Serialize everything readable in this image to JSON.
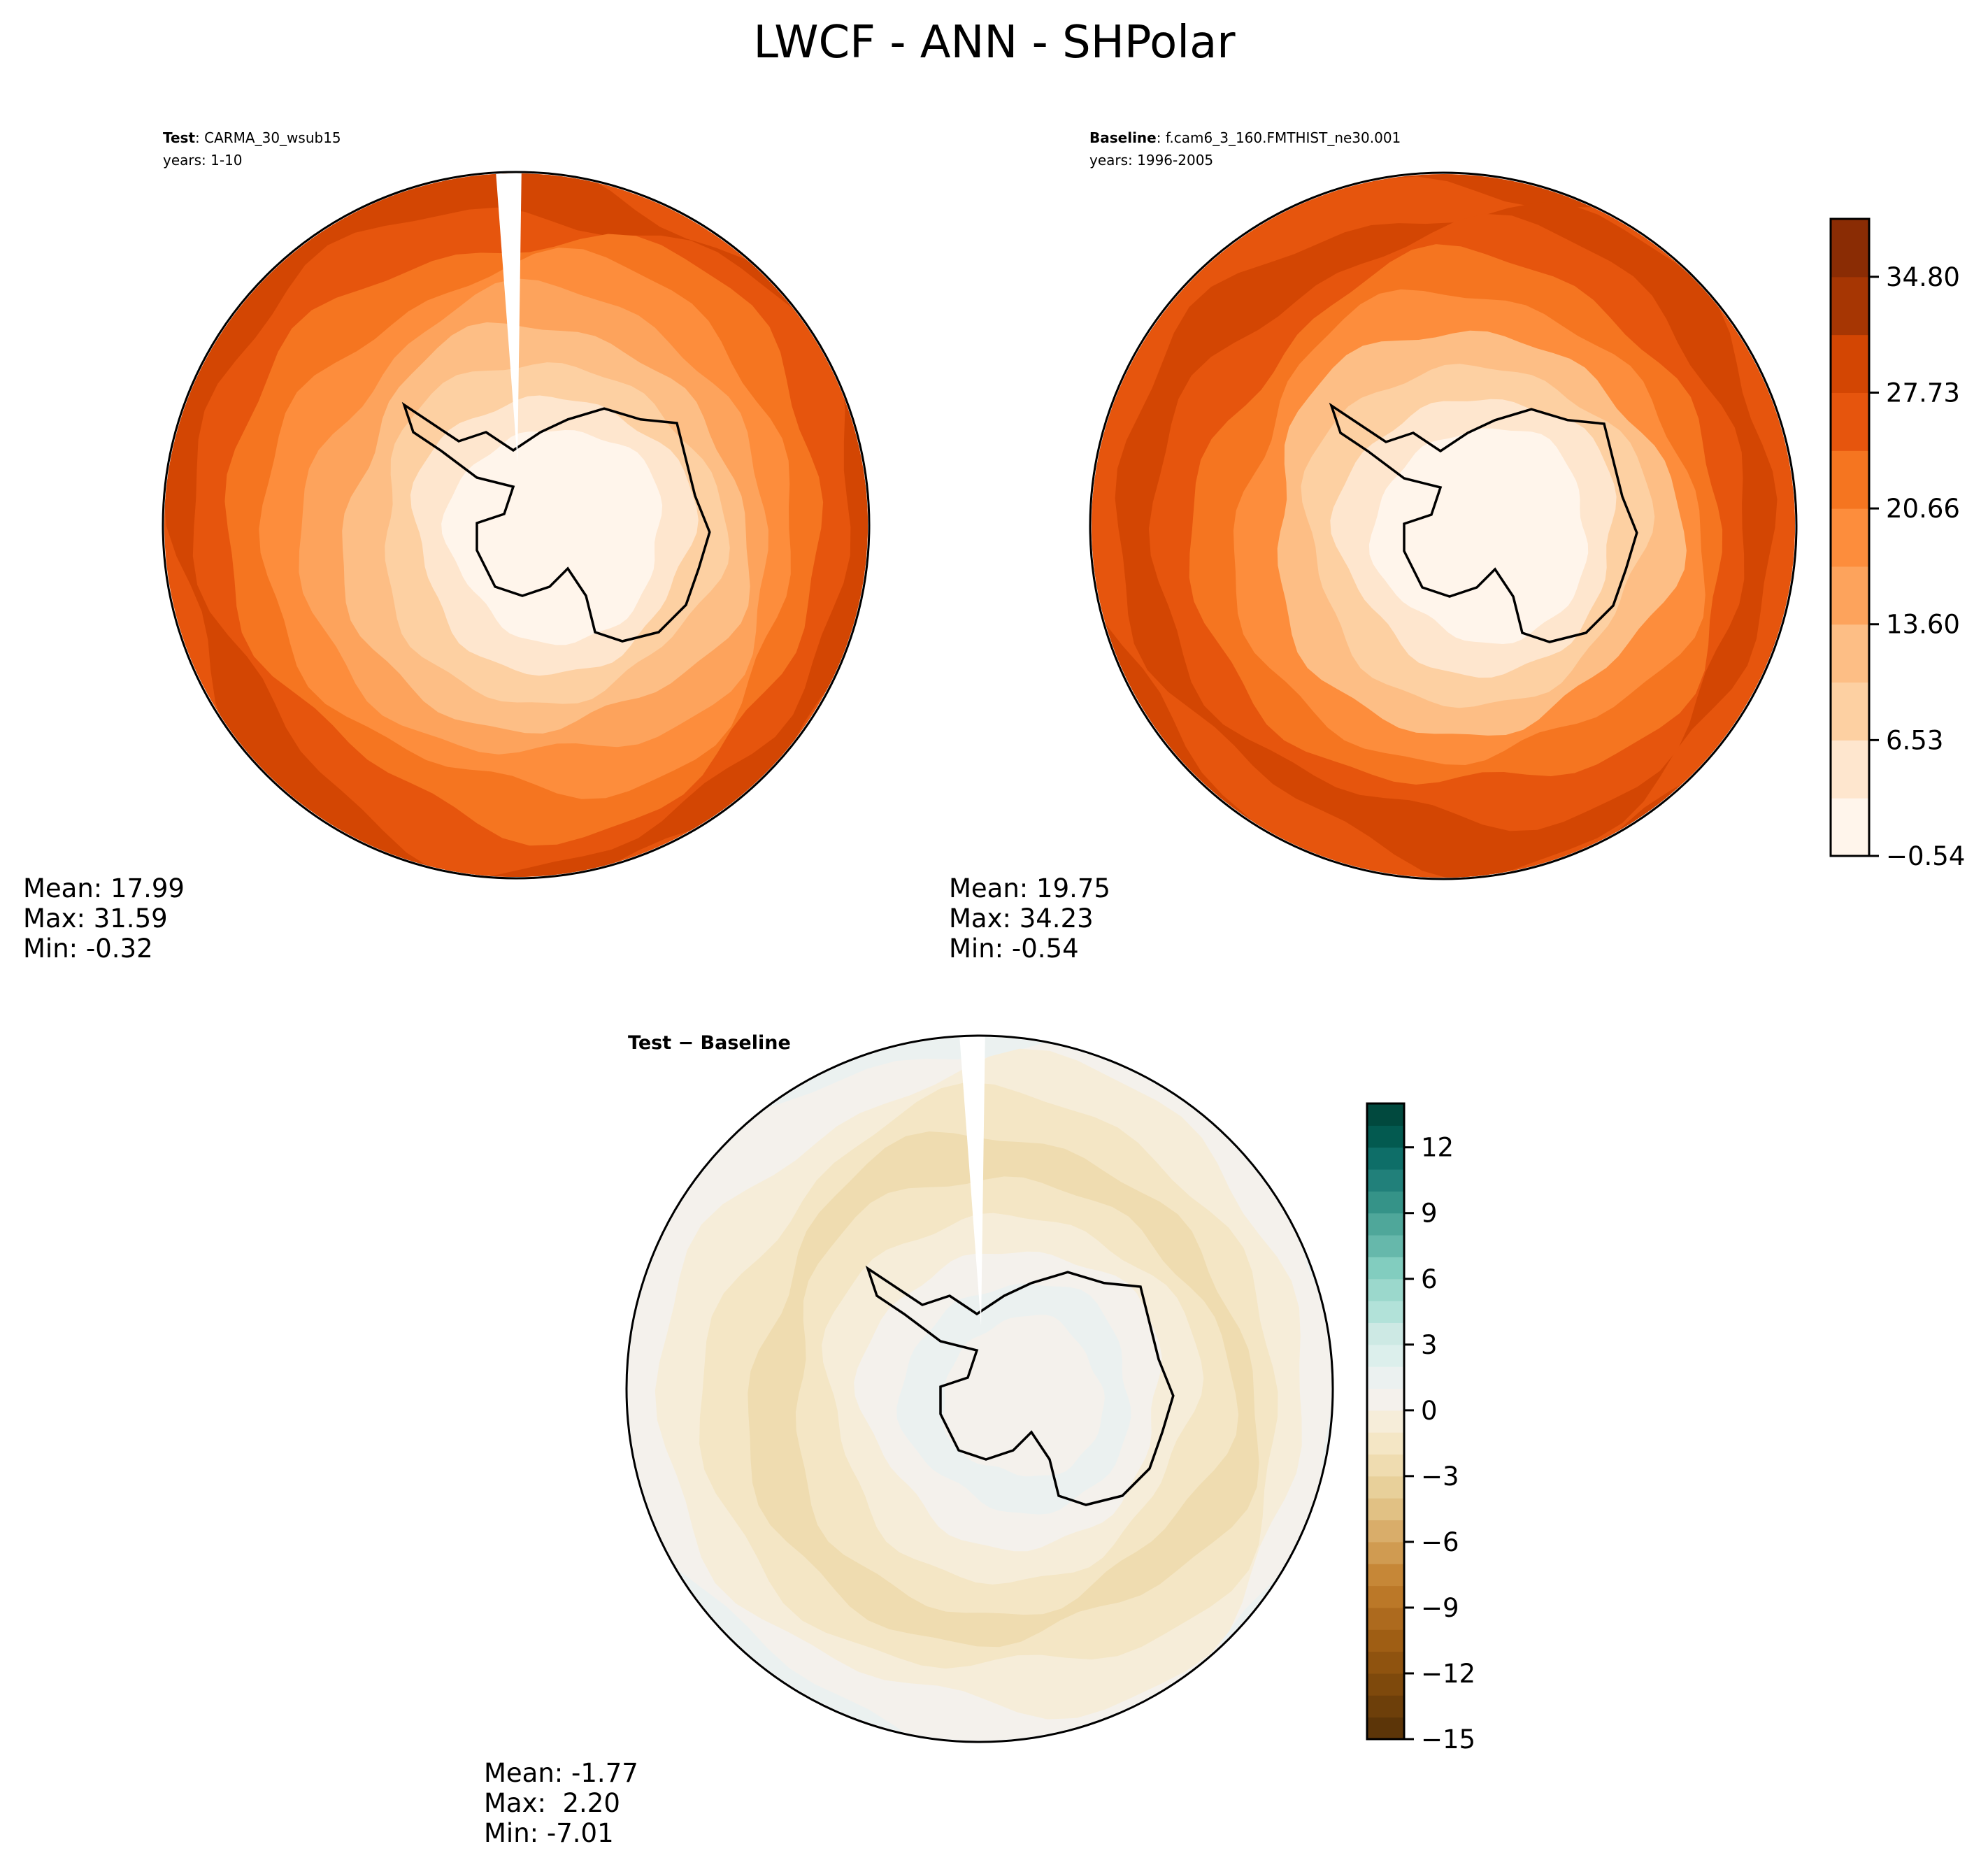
{
  "figure": {
    "title": "LWCF - ANN - SHPolar"
  },
  "panels": [
    {
      "id": "test",
      "label_bold": "Test",
      "label_rest": ": CARMA_30_wsub15",
      "years": "years: 1-10",
      "stats": {
        "mean": "Mean: 17.99",
        "max": "Max: 31.59",
        "min": "Min: -0.32"
      }
    },
    {
      "id": "baseline",
      "label_bold": "Baseline",
      "label_rest": ": f.cam6_3_160.FMTHIST_ne30.001",
      "years": "years: 1996-2005",
      "stats": {
        "mean": "Mean: 19.75",
        "max": "Max: 34.23",
        "min": "Min: -0.54"
      }
    },
    {
      "id": "diff",
      "title": "Test − Baseline",
      "stats": {
        "mean": "Mean: -1.77",
        "max": "Max:  2.20",
        "min": "Min: -7.01"
      }
    }
  ],
  "chart_data": [
    {
      "type": "contour-map",
      "panel": "test",
      "projection": "south-polar-stereographic",
      "colormap": "Oranges",
      "stats": {
        "mean": 17.99,
        "max": 31.59,
        "min": -0.32
      }
    },
    {
      "type": "contour-map",
      "panel": "baseline",
      "projection": "south-polar-stereographic",
      "colormap": "Oranges",
      "stats": {
        "mean": 19.75,
        "max": 34.23,
        "min": -0.54
      }
    },
    {
      "type": "contour-map",
      "panel": "diff",
      "projection": "south-polar-stereographic",
      "colormap": "BrBG",
      "stats": {
        "mean": -1.77,
        "max": 2.2,
        "min": -7.01
      }
    }
  ],
  "colorbars": {
    "main": {
      "ticks": [
        "34.80",
        "27.73",
        "20.66",
        "13.60",
        "6.53",
        "−0.54"
      ],
      "colors": [
        "#fff5eb",
        "#fee6ce",
        "#fdd0a2",
        "#fdbe85",
        "#fda35c",
        "#fd8d3c",
        "#f57520",
        "#e6550d",
        "#d34603",
        "#a63603",
        "#8a2c04"
      ]
    },
    "diff": {
      "ticks": [
        "12",
        "9",
        "6",
        "3",
        "0",
        "−3",
        "−6",
        "−9",
        "−12",
        "−15"
      ],
      "colors": [
        "#5c3508",
        "#6d3f0a",
        "#7e490c",
        "#8f530f",
        "#9f5e14",
        "#ad6a1e",
        "#bb7828",
        "#c68737",
        "#d09b51",
        "#d9ad6a",
        "#e1c184",
        "#e8d09a",
        "#efdcb0",
        "#f4e6c5",
        "#f6edd9",
        "#f4f1ec",
        "#ebf1f0",
        "#dcefec",
        "#cde9e4",
        "#b2e2d9",
        "#9bd8cc",
        "#82cdbf",
        "#66b8ab",
        "#4fa79a",
        "#359388",
        "#21807a",
        "#0e6e68",
        "#035a50",
        "#01493e"
      ]
    }
  }
}
